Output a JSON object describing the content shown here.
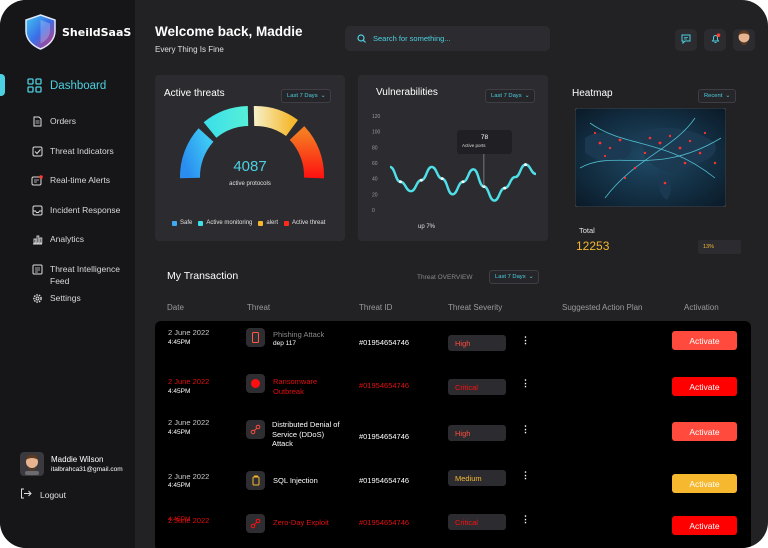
{
  "app": {
    "name": "SheildSaaS"
  },
  "sidebar": {
    "items": [
      {
        "label": "Dashboard",
        "icon": "dashboard-grid-icon"
      },
      {
        "label": "Orders",
        "icon": "orders-icon"
      },
      {
        "label": "Threat Indicators",
        "icon": "checkbox-icon"
      },
      {
        "label": "Real-time Alerts",
        "icon": "alert-icon"
      },
      {
        "label": "Incident Response",
        "icon": "inbox-icon"
      },
      {
        "label": "Analytics",
        "icon": "analytics-icon"
      },
      {
        "label": "Threat Intelligence Feed",
        "icon": "feed-icon"
      },
      {
        "label": "Settings",
        "icon": "gear-icon"
      }
    ]
  },
  "user": {
    "name": "Maddie Wilson",
    "email": "italbrahca31@gmail.com"
  },
  "logout_label": "Logout",
  "header": {
    "title": "Welcome back, Maddie",
    "subtitle": "Every Thing Is Fine",
    "search_placeholder": "Search for something..."
  },
  "colors": {
    "accent": "#4dd0e1",
    "critical": "#ff0000",
    "high": "#ff4a3d",
    "medium": "#f5b82e",
    "panel": "#2c2c30"
  },
  "active_threats": {
    "title": "Active threats",
    "range": "Last 7 Days",
    "value": "4087",
    "caption": "active protocols",
    "legend": [
      {
        "label": "Safe",
        "color": "#3ea8f5"
      },
      {
        "label": "Active monitoring",
        "color": "#3ee0e8"
      },
      {
        "label": "alert",
        "color": "#f5b82e"
      },
      {
        "label": "Active threat",
        "color": "#ff2a1a"
      }
    ]
  },
  "vulnerabilities": {
    "title": "Vulnerabilities",
    "range": "Last 7 Days",
    "tooltip_value": "78",
    "tooltip_label": "Active ports",
    "footer": "up 7%"
  },
  "heatmap": {
    "title": "Heatmap",
    "range": "Recent",
    "total_label": "Total",
    "total_value": "12253",
    "badge": "13%"
  },
  "transactions": {
    "title": "My Transaction",
    "overview_label": "Threat OVERVIEW",
    "range": "Last 7 Days",
    "headers": [
      "Date",
      "Threat",
      "Threat ID",
      "Threat Severity",
      "Suggested Action Plan",
      "Activation"
    ],
    "rows": [
      {
        "date": "2 June 2022",
        "time": "4:45PM",
        "threat": "Phishing Attack",
        "sub": "dep 117",
        "id": "#01954654746",
        "severity": "High",
        "action": "Activate"
      },
      {
        "date": "2 June 2022",
        "time": "4:45PM",
        "threat": "Ransomware Outbreak",
        "sub": "",
        "id": "#01954654746",
        "severity": "Critical",
        "action": "Activate"
      },
      {
        "date": "2 June 2022",
        "time": "4:45PM",
        "threat": "Distributed Denial of Service (DDoS) Attack",
        "sub": "",
        "id": "#01954654746",
        "severity": "High",
        "action": "Activate"
      },
      {
        "date": "2 June 2022",
        "time": "4:45PM",
        "threat": "SQL Injection",
        "sub": "",
        "id": "#01954654746",
        "severity": "Medium",
        "action": "Activate"
      },
      {
        "date": "2 June 2022",
        "time": "4:45PM",
        "threat": "Zero-Day Exploit",
        "sub": "",
        "id": "#01954654746",
        "severity": "Critical",
        "action": "Activate"
      }
    ]
  },
  "chart_data": {
    "type": "line",
    "title": "Vulnerabilities",
    "y_ticks": [
      "120",
      "100",
      "80",
      "60",
      "40",
      "20",
      "0"
    ],
    "ylim": [
      0,
      120
    ],
    "x": [
      0,
      1,
      2,
      3,
      4,
      5,
      6,
      7,
      8,
      9,
      10,
      11,
      12,
      13,
      14
    ],
    "series": [
      {
        "values": [
          55,
          36,
          24,
          38,
          55,
          40,
          20,
          36,
          52,
          30,
          12,
          28,
          42,
          58,
          46
        ]
      }
    ]
  }
}
